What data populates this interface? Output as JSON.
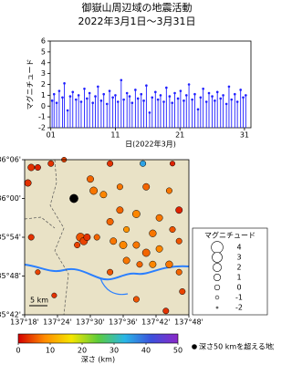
{
  "header": {
    "title": "御嶽山周辺域の地震活動",
    "subtitle": "2022年3月1日～3月31日"
  },
  "chart_data": [
    {
      "type": "stem",
      "ylabel": "マグニチュード",
      "xlabel": "日(2022年3月)",
      "color": "#1f1fff",
      "xlim": [
        0.9,
        32
      ],
      "ylim": [
        -2,
        6
      ],
      "xticks": [
        {
          "value": 1,
          "label": "01"
        },
        {
          "value": 11,
          "label": "11"
        },
        {
          "value": 21,
          "label": "21"
        },
        {
          "value": 31,
          "label": "31"
        }
      ],
      "yticks": [
        -2,
        -1,
        0,
        1,
        2,
        3,
        4,
        5,
        6
      ],
      "x": [
        1.2,
        1.5,
        1.9,
        2.3,
        2.8,
        3.1,
        3.6,
        4.0,
        4.4,
        4.9,
        5.3,
        5.7,
        6.2,
        6.6,
        7.0,
        7.5,
        7.9,
        8.3,
        8.8,
        9.2,
        9.7,
        10.1,
        10.6,
        11.0,
        11.4,
        11.9,
        12.3,
        12.8,
        13.2,
        13.6,
        14.1,
        14.5,
        15.0,
        15.4,
        15.8,
        16.3,
        16.7,
        17.2,
        17.6,
        18.0,
        18.5,
        18.9,
        19.4,
        19.8,
        20.2,
        20.7,
        21.1,
        21.6,
        22.0,
        22.4,
        22.9,
        23.3,
        23.8,
        24.2,
        24.6,
        25.1,
        25.5,
        26.0,
        26.4,
        26.8,
        27.3,
        27.7,
        28.2,
        28.6,
        29.0,
        29.5,
        29.9,
        30.4,
        30.8,
        31.2
      ],
      "values": [
        0.5,
        1.1,
        0.3,
        1.4,
        0.8,
        2.1,
        -0.4,
        0.9,
        1.3,
        0.6,
        1.0,
        0.4,
        1.6,
        0.7,
        1.2,
        0.3,
        0.9,
        1.8,
        0.5,
        1.1,
        0.2,
        1.4,
        0.8,
        1.0,
        0.4,
        2.4,
        0.6,
        1.2,
        0.9,
        0.3,
        1.5,
        0.7,
        1.1,
        0.5,
        1.9,
        -0.6,
        0.8,
        1.3,
        0.6,
        1.0,
        0.4,
        1.7,
        0.9,
        0.3,
        1.2,
        0.7,
        1.4,
        0.5,
        1.0,
        2.0,
        0.6,
        1.1,
        -0.3,
        0.8,
        1.6,
        0.4,
        1.2,
        0.9,
        0.5,
        1.3,
        0.7,
        1.0,
        0.2,
        1.8,
        0.6,
        1.1,
        0.4,
        1.5,
        0.8,
        1.0
      ]
    },
    {
      "type": "scatter",
      "background": "#e9e2c6",
      "xlim": [
        137.3,
        137.8
      ],
      "ylim": [
        35.7,
        36.1
      ],
      "xticks": [
        {
          "value": 137.3,
          "label": "137°18'"
        },
        {
          "value": 137.4,
          "label": "137°24'"
        },
        {
          "value": 137.5,
          "label": "137°30'"
        },
        {
          "value": 137.6,
          "label": "137°36'"
        },
        {
          "value": 137.7,
          "label": "137°42'"
        },
        {
          "value": 137.8,
          "label": "137°48'"
        }
      ],
      "yticks": [
        {
          "value": 35.7,
          "label": "35°42'"
        },
        {
          "value": 35.8,
          "label": "35°48'"
        },
        {
          "value": 35.9,
          "label": "35°54'"
        },
        {
          "value": 36.0,
          "label": "36°00'"
        },
        {
          "value": 36.1,
          "label": "36°06'"
        }
      ],
      "x": [
        137.32,
        137.34,
        137.38,
        137.42,
        137.56,
        137.66,
        137.75,
        137.31,
        137.45,
        137.5,
        137.51,
        137.54,
        137.59,
        137.67,
        137.74,
        137.59,
        137.64,
        137.71,
        137.56,
        137.61,
        137.69,
        137.75,
        137.47,
        137.48,
        137.49,
        137.46,
        137.52,
        137.57,
        137.6,
        137.64,
        137.67,
        137.71,
        137.77,
        137.61,
        137.65,
        137.69,
        137.74,
        137.77,
        137.78,
        137.56,
        137.32,
        137.34,
        137.39,
        137.64,
        137.73,
        137.77
      ],
      "y": [
        36.08,
        36.08,
        36.09,
        36.1,
        36.09,
        36.09,
        36.09,
        36.04,
        36.0,
        36.05,
        36.02,
        36.01,
        36.03,
        36.03,
        36.02,
        35.97,
        35.96,
        35.95,
        35.94,
        35.92,
        35.91,
        35.92,
        35.9,
        35.89,
        35.9,
        35.88,
        35.9,
        35.89,
        35.88,
        35.88,
        35.86,
        35.87,
        35.89,
        35.84,
        35.83,
        35.83,
        35.83,
        35.81,
        35.76,
        35.81,
        35.9,
        35.81,
        35.75,
        35.74,
        35.71,
        35.97
      ],
      "depth": [
        3,
        2,
        3,
        4,
        3,
        35,
        2,
        3,
        60,
        6,
        7,
        8,
        7,
        6,
        7,
        6,
        8,
        7,
        6,
        9,
        7,
        5,
        5,
        4,
        3,
        4,
        6,
        7,
        8,
        7,
        6,
        8,
        5,
        7,
        6,
        8,
        7,
        6,
        4,
        5,
        3,
        4,
        3,
        5,
        3,
        2
      ],
      "magnitude": [
        1,
        0.5,
        0.5,
        0,
        0.5,
        0.5,
        0,
        1,
        2,
        1,
        1.5,
        1,
        0.5,
        1,
        0.5,
        1,
        1.5,
        1,
        1,
        0.5,
        1.2,
        0.5,
        2,
        1.5,
        1,
        0.5,
        0.5,
        1,
        1.5,
        1,
        1.5,
        1,
        0.5,
        1,
        0.5,
        1,
        1.2,
        0.5,
        0.5,
        0.5,
        0.5,
        0,
        0,
        0.5,
        0.5,
        1
      ],
      "scalebar": "5 km",
      "deep_color": "#000000",
      "deep_label": "深さ50 kmを超える地震",
      "size_legend": {
        "title": "マグニチュード",
        "values": [
          4,
          3,
          2,
          1,
          0,
          -1,
          -2
        ]
      },
      "colorbar": {
        "label": "深さ (km)",
        "lim": [
          0,
          50
        ],
        "ticks": [
          0,
          10,
          20,
          30,
          40,
          50
        ],
        "colors": [
          "#d40000",
          "#ff8c00",
          "#f5e600",
          "#5ccc3c",
          "#29b6e6",
          "#3c50dc",
          "#8c28c8"
        ]
      }
    }
  ]
}
